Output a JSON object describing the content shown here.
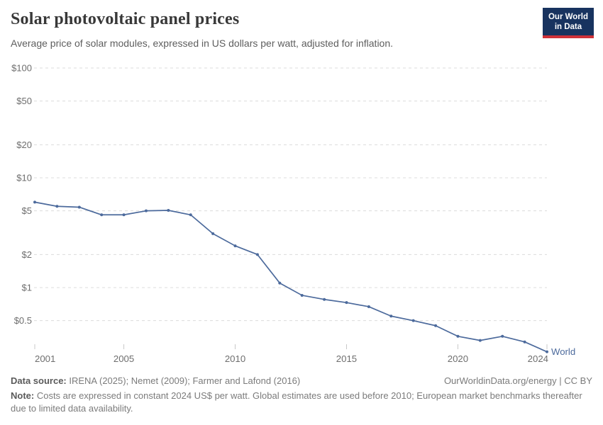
{
  "header": {
    "title": "Solar photovoltaic panel prices",
    "subtitle": "Average price of solar modules, expressed in US dollars per watt, adjusted for inflation.",
    "logo": {
      "line1": "Our World",
      "line2": "in Data",
      "bg_color": "#18335f",
      "accent_color": "#cf3139"
    }
  },
  "chart_data": {
    "type": "line",
    "title": "Solar photovoltaic panel prices",
    "subtitle": "Average price of solar modules, expressed in US dollars per watt, adjusted for inflation.",
    "xlabel": "",
    "ylabel": "US dollars per watt",
    "yscale": "log",
    "ylim": [
      0.25,
      100
    ],
    "xlim": [
      2001,
      2024
    ],
    "grid": "horizontal-dashed",
    "legend_position": "end-of-line",
    "grid_color": "#dcdcdc",
    "tick_color": "#c8c8c8",
    "axis_text_color": "#6e6e6e",
    "y_ticks": [
      {
        "value": 100,
        "label": "$100"
      },
      {
        "value": 50,
        "label": "$50"
      },
      {
        "value": 20,
        "label": "$20"
      },
      {
        "value": 10,
        "label": "$10"
      },
      {
        "value": 5,
        "label": "$5"
      },
      {
        "value": 2,
        "label": "$2"
      },
      {
        "value": 1,
        "label": "$1"
      },
      {
        "value": 0.5,
        "label": "$0.5"
      }
    ],
    "x_ticks": [
      2001,
      2005,
      2010,
      2015,
      2020,
      2024
    ],
    "series": [
      {
        "name": "World",
        "color": "#4c6a9c",
        "x": [
          2001,
          2002,
          2003,
          2004,
          2005,
          2006,
          2007,
          2008,
          2009,
          2010,
          2011,
          2012,
          2013,
          2014,
          2015,
          2016,
          2017,
          2018,
          2019,
          2020,
          2021,
          2022,
          2023,
          2024
        ],
        "values": [
          6.0,
          5.5,
          5.4,
          4.6,
          4.6,
          5.0,
          5.05,
          4.6,
          3.1,
          2.4,
          2.0,
          1.1,
          0.85,
          0.78,
          0.73,
          0.67,
          0.55,
          0.5,
          0.45,
          0.36,
          0.33,
          0.36,
          0.32,
          0.26
        ]
      }
    ]
  },
  "footer": {
    "data_source_label": "Data source:",
    "data_source_text": " IRENA (2025); Nemet (2009); Farmer and Lafond (2016)",
    "license_text": "OurWorldinData.org/energy | CC BY",
    "note_label": "Note:",
    "note_text": " Costs are expressed in constant 2024 US$ per watt. Global estimates are used before 2010; European market benchmarks thereafter due to limited data availability."
  }
}
